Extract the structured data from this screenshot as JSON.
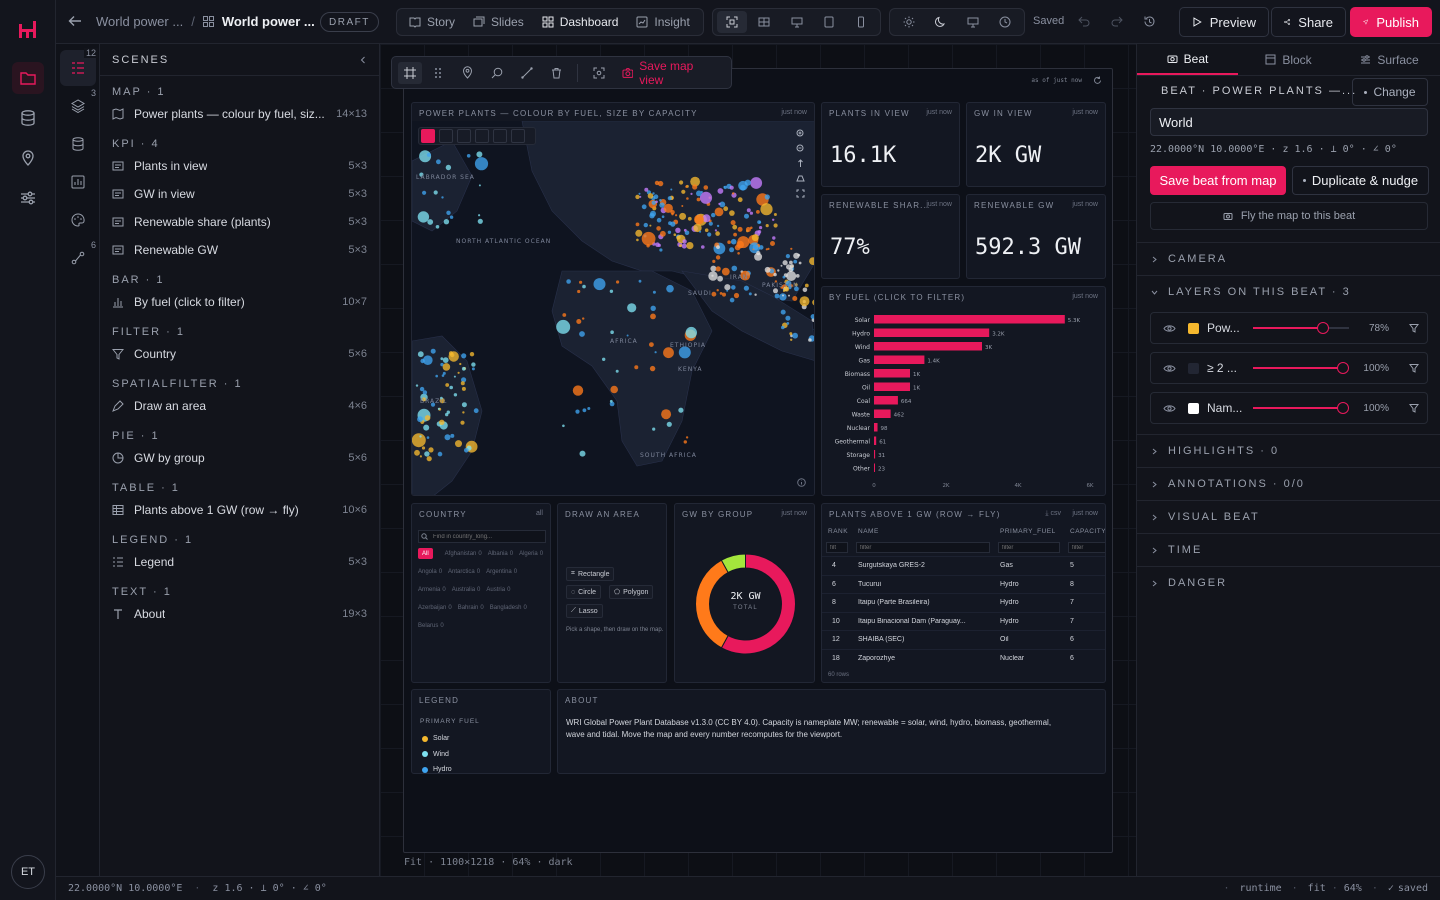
{
  "app": {
    "user_initials": "ET"
  },
  "header": {
    "breadcrumb_parent": "World power ...",
    "title": "World power ...",
    "status_badge": "DRAFT",
    "view_tabs": [
      {
        "label": "Story",
        "icon": "book-icon",
        "active": false
      },
      {
        "label": "Slides",
        "icon": "slides-icon",
        "active": false
      },
      {
        "label": "Dashboard",
        "icon": "grid-icon",
        "active": true
      },
      {
        "label": "Insight",
        "icon": "insight-icon",
        "active": false
      }
    ],
    "save_state": "Saved",
    "preview_label": "Preview",
    "share_label": "Share",
    "publish_label": "Publish",
    "accent_color": "#e8195c"
  },
  "iconcol": {
    "badges": [
      "12",
      "3",
      "6"
    ]
  },
  "scenes": {
    "title": "SCENES",
    "groups": [
      {
        "name": "MAP · 1",
        "items": [
          {
            "label": "Power plants — colour by fuel, siz...",
            "dims": "14×13",
            "icon": "map-icon"
          }
        ]
      },
      {
        "name": "KPI · 4",
        "items": [
          {
            "label": "Plants in view",
            "dims": "5×3",
            "icon": "kpi-icon"
          },
          {
            "label": "GW in view",
            "dims": "5×3",
            "icon": "kpi-icon"
          },
          {
            "label": "Renewable share (plants)",
            "dims": "5×3",
            "icon": "kpi-icon"
          },
          {
            "label": "Renewable GW",
            "dims": "5×3",
            "icon": "kpi-icon"
          }
        ]
      },
      {
        "name": "BAR · 1",
        "items": [
          {
            "label": "By fuel (click to filter)",
            "dims": "10×7",
            "icon": "bar-icon"
          }
        ]
      },
      {
        "name": "FILTER · 1",
        "items": [
          {
            "label": "Country",
            "dims": "5×6",
            "icon": "filter-icon"
          }
        ]
      },
      {
        "name": "SPATIALFILTER · 1",
        "items": [
          {
            "label": "Draw an area",
            "dims": "4×6",
            "icon": "draw-icon"
          }
        ]
      },
      {
        "name": "PIE · 1",
        "items": [
          {
            "label": "GW by group",
            "dims": "5×6",
            "icon": "pie-icon"
          }
        ]
      },
      {
        "name": "TABLE · 1",
        "items": [
          {
            "label": "Plants above 1 GW (row → fly)",
            "dims": "10×6",
            "icon": "table-icon"
          }
        ]
      },
      {
        "name": "LEGEND · 1",
        "items": [
          {
            "label": "Legend",
            "dims": "5×3",
            "icon": "legend-icon"
          }
        ]
      },
      {
        "name": "TEXT · 1",
        "items": [
          {
            "label": "About",
            "dims": "19×3",
            "icon": "text-icon"
          }
        ]
      }
    ]
  },
  "canvas": {
    "save_map_view": "Save map view",
    "frame_stamp": "as of just now",
    "footer": "Fit · 1100×1218 · 64% · dark",
    "map": {
      "title": "POWER PLANTS — COLOUR BY FUEL, SIZE BY CAPACITY",
      "stamp": "just now",
      "labels": [
        "LABRADOR SEA",
        "NORTH ATLANTIC OCEAN",
        "AFRICA",
        "ETHIOPIA",
        "KENYA",
        "SAUDI",
        "IRAN",
        "PAKISTAN",
        "BRAZIL",
        "SOUTH AFRICA"
      ]
    },
    "kpis": [
      {
        "title": "PLANTS IN VIEW",
        "stamp": "just now",
        "value": "16.1K"
      },
      {
        "title": "GW IN VIEW",
        "stamp": "just now",
        "value": "2K GW"
      },
      {
        "title": "RENEWABLE SHAR...",
        "stamp": "just now",
        "value": "77%"
      },
      {
        "title": "RENEWABLE GW",
        "stamp": "just now",
        "value": "592.3 GW"
      }
    ],
    "bar": {
      "title": "BY FUEL (CLICK TO FILTER)",
      "stamp": "just now"
    },
    "country": {
      "title": "COUNTRY",
      "stamp": "all",
      "placeholder": "Find in country_long...",
      "chips": [
        {
          "label": "All",
          "count": ""
        },
        {
          "label": "Afghanistan",
          "count": "0"
        },
        {
          "label": "Albania",
          "count": "0"
        },
        {
          "label": "Algeria",
          "count": "0"
        },
        {
          "label": "Angola",
          "count": "0"
        },
        {
          "label": "Antarctica",
          "count": "0"
        },
        {
          "label": "Argentina",
          "count": "0"
        },
        {
          "label": "Armenia",
          "count": "0"
        },
        {
          "label": "Australia",
          "count": "0"
        },
        {
          "label": "Austria",
          "count": "0"
        },
        {
          "label": "Azerbaijan",
          "count": "0"
        },
        {
          "label": "Bahrain",
          "count": "0"
        },
        {
          "label": "Bangladesh",
          "count": "0"
        },
        {
          "label": "Belarus",
          "count": "0"
        }
      ]
    },
    "draw": {
      "title": "DRAW AN AREA",
      "rectangle": "Rectangle",
      "circle": "Circle",
      "polygon": "Polygon",
      "lasso": "Lasso",
      "hint": "Pick a shape, then draw on the map."
    },
    "pie": {
      "title": "GW BY GROUP",
      "stamp": "just now",
      "center_value": "2K GW",
      "center_label": "TOTAL"
    },
    "table": {
      "title": "PLANTS ABOVE 1 GW (ROW → FLY)",
      "csv": "csv",
      "stamp": "just now",
      "columns": [
        "RANK",
        "NAME",
        "PRIMARY_FUEL",
        "CAPACITY"
      ],
      "filter_placeholders": [
        "filt",
        "filter",
        "filter",
        "filter"
      ],
      "rows": [
        [
          "4",
          "Surgutskaya GRES-2",
          "Gas",
          "5"
        ],
        [
          "6",
          "Tucurui",
          "Hydro",
          "8"
        ],
        [
          "8",
          "Itaipu (Parte Brasileira)",
          "Hydro",
          "7"
        ],
        [
          "10",
          "Itaipu Binacional Dam (Paraguay...",
          "Hydro",
          "7"
        ],
        [
          "12",
          "SHAIBA (SEC)",
          "Oil",
          "6"
        ],
        [
          "18",
          "Zaporozhye",
          "Nuclear",
          "6"
        ]
      ],
      "footer": "60 rows"
    },
    "legend": {
      "title": "LEGEND",
      "subtitle": "PRIMARY FUEL",
      "items": [
        {
          "label": "Solar",
          "color": "#f5b82e"
        },
        {
          "label": "Wind",
          "color": "#7ee0f0"
        },
        {
          "label": "Hydro",
          "color": "#3fa4f0"
        }
      ]
    },
    "about": {
      "title": "ABOUT",
      "text": "WRI Global Power Plant Database v1.3.0 (CC BY 4.0). Capacity is nameplate MW; renewable = solar, wind, hydro, biomass, geothermal, wave and tidal. Move the map and every number recomputes for the viewport."
    }
  },
  "chart_data": [
    {
      "type": "bar",
      "title": "BY FUEL (CLICK TO FILTER)",
      "orientation": "horizontal",
      "categories": [
        "Solar",
        "Hydro",
        "Wind",
        "Gas",
        "Biomass",
        "Oil",
        "Coal",
        "Waste",
        "Nuclear",
        "Geothermal",
        "Storage",
        "Other"
      ],
      "values": [
        5300,
        3200,
        3000,
        1400,
        1000,
        1000,
        664,
        462,
        98,
        61,
        31,
        23
      ],
      "value_labels": [
        "5.3K",
        "3.2K",
        "3K",
        "1.4K",
        "1K",
        "1K",
        "664",
        "462",
        "98",
        "61",
        "31",
        "23"
      ],
      "xlim": [
        0,
        6000
      ],
      "xticks": [
        "0",
        "2K",
        "4K",
        "6K"
      ],
      "color": "#e8195c"
    },
    {
      "type": "pie",
      "title": "GW BY GROUP",
      "donut": true,
      "slices": [
        {
          "value": 58,
          "color": "#e8195c"
        },
        {
          "value": 34,
          "color": "#ff7a1a"
        },
        {
          "value": 8,
          "color": "#a4e63c"
        }
      ]
    }
  ],
  "inspector": {
    "tabs": [
      {
        "label": "Beat",
        "active": true
      },
      {
        "label": "Block",
        "active": false
      },
      {
        "label": "Surface",
        "active": false
      }
    ],
    "beat_label": "BEAT · POWER PLANTS —...",
    "change_label": "Change",
    "beat_name": "World",
    "coords": "22.0000°N 10.0000°E · z 1.6 · ⟂ 0° · ∠ 0°",
    "save_beat": "Save beat from map",
    "duplicate": "Duplicate & nudge",
    "fly": "Fly the map to this beat",
    "sections_top": [
      "CAMERA"
    ],
    "layers_title": "LAYERS ON THIS BEAT · 3",
    "layers": [
      {
        "name": "Pow...",
        "color": "#f5b82e",
        "opacity": 0.78,
        "opacity_label": "78%"
      },
      {
        "name": "≥ 2 ...",
        "color": "#222633",
        "opacity": 1.0,
        "opacity_label": "100%"
      },
      {
        "name": "Nam...",
        "color": "#ffffff",
        "opacity": 1.0,
        "opacity_label": "100%"
      }
    ],
    "sections_bottom": [
      "HIGHLIGHTS · 0",
      "ANNOTATIONS · 0/0",
      "VISUAL BEAT",
      "TIME",
      "DANGER"
    ]
  },
  "status": {
    "coords": "22.0000°N 10.0000°E",
    "zoom": "z 1.6 · ⟂ 0° · ∠ 0°",
    "runtime": "runtime",
    "fit": "fit",
    "zoom_pct": "64%",
    "saved": "saved"
  }
}
